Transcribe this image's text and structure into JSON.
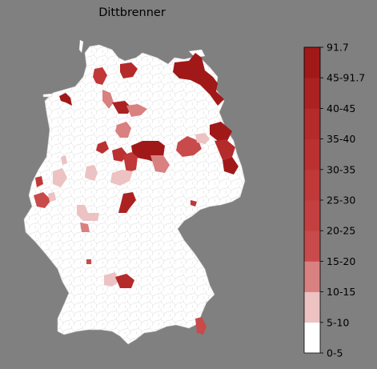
{
  "map": {
    "title": "Dittbrenner"
  },
  "legend": {
    "ticks": [
      "0-5",
      "5-10",
      "10-15",
      "15-20",
      "20-25",
      "25-30",
      "30-35",
      "35-40",
      "40-45",
      "45-91.7",
      "91.7"
    ],
    "colors": [
      "#ffffff",
      "#ecc2c2",
      "#d98080",
      "#c84a4a",
      "#c43f3f",
      "#c03838",
      "#bb3030",
      "#b52a2a",
      "#ac2222",
      "#a11818"
    ]
  },
  "colors": {
    "background": "#808080",
    "country_fill": "#ffffff",
    "border": "#cccccc"
  }
}
